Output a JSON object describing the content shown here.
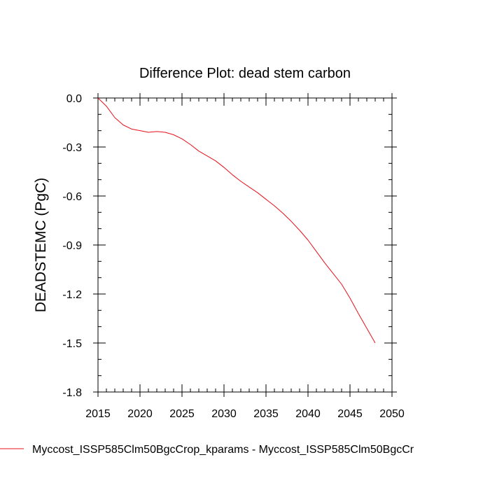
{
  "chart_data": {
    "type": "line",
    "title": "Difference Plot: dead stem carbon",
    "xlabel": "",
    "ylabel": "DEADSTEMC  (PgC)",
    "xlim": [
      2015,
      2050
    ],
    "ylim": [
      -1.8,
      0.0
    ],
    "x_ticks": [
      "2015",
      "2020",
      "2025",
      "2030",
      "2035",
      "2040",
      "2045",
      "2050"
    ],
    "y_ticks": [
      "0.0",
      "-0.3",
      "-0.6",
      "-0.9",
      "-1.2",
      "-1.5",
      "-1.8"
    ],
    "grid": false,
    "legend_position": "bottom",
    "series": [
      {
        "name": "Myccost_ISSP585Clm50BgcCrop_kparams - Myccost_ISSP585Clm50BgcCr",
        "color": "#e8101a",
        "x": [
          2015,
          2016,
          2017,
          2018,
          2019,
          2020,
          2021,
          2022,
          2023,
          2024,
          2025,
          2026,
          2027,
          2028,
          2029,
          2030,
          2031,
          2032,
          2033,
          2034,
          2035,
          2036,
          2037,
          2038,
          2039,
          2040,
          2041,
          2042,
          2043,
          2044,
          2045,
          2046,
          2047,
          2048
        ],
        "y": [
          0.0,
          -0.05,
          -0.12,
          -0.165,
          -0.19,
          -0.2,
          -0.21,
          -0.205,
          -0.21,
          -0.225,
          -0.25,
          -0.285,
          -0.325,
          -0.355,
          -0.385,
          -0.425,
          -0.47,
          -0.51,
          -0.545,
          -0.58,
          -0.62,
          -0.66,
          -0.705,
          -0.755,
          -0.81,
          -0.87,
          -0.94,
          -1.01,
          -1.075,
          -1.14,
          -1.225,
          -1.32,
          -1.41,
          -1.5
        ]
      }
    ]
  }
}
